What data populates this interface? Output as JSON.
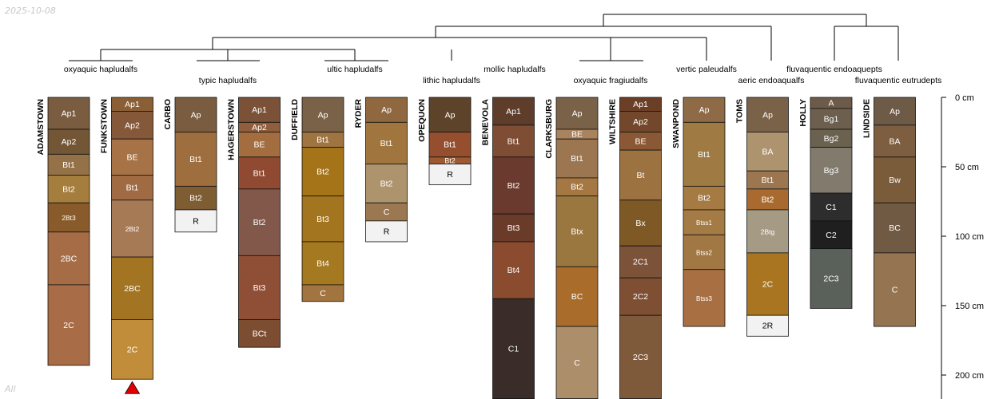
{
  "corner_date": "2025-10-08",
  "corner_group": "All",
  "chart_data": {
    "type": "soil-profile-sketch",
    "depth_unit": "cm",
    "depth_axis": {
      "ticks": [
        0,
        50,
        100,
        150,
        200
      ],
      "labels": [
        "0 cm",
        "50 cm",
        "100 cm",
        "150 cm",
        "200 cm"
      ],
      "range": [
        0,
        217
      ]
    },
    "profiles": [
      {
        "name": "ADAMSTOWN",
        "horizons": [
          {
            "label": "Ap1",
            "top": 0,
            "bottom": 23,
            "color": "#7a5d40"
          },
          {
            "label": "Ap2",
            "top": 23,
            "bottom": 41,
            "color": "#725636"
          },
          {
            "label": "Bt1",
            "top": 41,
            "bottom": 56,
            "color": "#947146"
          },
          {
            "label": "Bt2",
            "top": 56,
            "bottom": 76,
            "color": "#a57d3c"
          },
          {
            "label": "2Bt3",
            "top": 76,
            "bottom": 97,
            "color": "#8a5b2a"
          },
          {
            "label": "2BC",
            "top": 97,
            "bottom": 135,
            "color": "#a56c46"
          },
          {
            "label": "2C",
            "top": 135,
            "bottom": 193,
            "color": "#a86c46"
          }
        ]
      },
      {
        "name": "FUNKSTOWN",
        "horizons": [
          {
            "label": "Ap1",
            "top": 0,
            "bottom": 10,
            "color": "#8a5f35"
          },
          {
            "label": "Ap2",
            "top": 10,
            "bottom": 30,
            "color": "#86583a"
          },
          {
            "label": "BE",
            "top": 30,
            "bottom": 56,
            "color": "#a77346"
          },
          {
            "label": "Bt1",
            "top": 56,
            "bottom": 74,
            "color": "#a06b43"
          },
          {
            "label": "2Bt2",
            "top": 74,
            "bottom": 115,
            "color": "#a77a56"
          },
          {
            "label": "2BC",
            "top": 115,
            "bottom": 160,
            "color": "#a37421"
          },
          {
            "label": "2C",
            "top": 160,
            "bottom": 203,
            "color": "#c28d3a"
          }
        ]
      },
      {
        "name": "CARBO",
        "horizons": [
          {
            "label": "Ap",
            "top": 0,
            "bottom": 25,
            "color": "#7a5d40"
          },
          {
            "label": "Bt1",
            "top": 25,
            "bottom": 64,
            "color": "#9f6e3f"
          },
          {
            "label": "Bt2",
            "top": 64,
            "bottom": 81,
            "color": "#7e5d33"
          },
          {
            "label": "R",
            "top": 81,
            "bottom": 97,
            "color": "#f2f2f2"
          }
        ]
      },
      {
        "name": "HAGERSTOWN",
        "horizons": [
          {
            "label": "Ap1",
            "top": 0,
            "bottom": 18,
            "color": "#7b5238"
          },
          {
            "label": "Ap2",
            "top": 18,
            "bottom": 25,
            "color": "#8f5e3c"
          },
          {
            "label": "BE",
            "top": 25,
            "bottom": 43,
            "color": "#a36d40"
          },
          {
            "label": "Bt1",
            "top": 43,
            "bottom": 66,
            "color": "#8f4a31"
          },
          {
            "label": "Bt2",
            "top": 66,
            "bottom": 114,
            "color": "#82584b"
          },
          {
            "label": "Bt3",
            "top": 114,
            "bottom": 160,
            "color": "#8f4e36"
          },
          {
            "label": "BCt",
            "top": 160,
            "bottom": 180,
            "color": "#7c4d31"
          }
        ]
      },
      {
        "name": "DUFFIELD",
        "horizons": [
          {
            "label": "Ap",
            "top": 0,
            "bottom": 25,
            "color": "#7a6248"
          },
          {
            "label": "Bt1",
            "top": 25,
            "bottom": 36,
            "color": "#9f7440"
          },
          {
            "label": "Bt2",
            "top": 36,
            "bottom": 71,
            "color": "#a57419"
          },
          {
            "label": "Bt3",
            "top": 71,
            "bottom": 104,
            "color": "#a4751f"
          },
          {
            "label": "Bt4",
            "top": 104,
            "bottom": 135,
            "color": "#a57920"
          },
          {
            "label": "C",
            "top": 135,
            "bottom": 147,
            "color": "#a2743f"
          }
        ]
      },
      {
        "name": "RYDER",
        "horizons": [
          {
            "label": "Ap",
            "top": 0,
            "bottom": 18,
            "color": "#8f683f"
          },
          {
            "label": "Bt1",
            "top": 18,
            "bottom": 48,
            "color": "#a0763e"
          },
          {
            "label": "Bt2",
            "top": 48,
            "bottom": 76,
            "color": "#ae946d"
          },
          {
            "label": "C",
            "top": 76,
            "bottom": 89,
            "color": "#9b7752"
          },
          {
            "label": "R",
            "top": 89,
            "bottom": 104,
            "color": "#f2f2f2"
          }
        ]
      },
      {
        "name": "OPEQUON",
        "horizons": [
          {
            "label": "Ap",
            "top": 0,
            "bottom": 25,
            "color": "#5e432b"
          },
          {
            "label": "Bt1",
            "top": 25,
            "bottom": 43,
            "color": "#954f2f"
          },
          {
            "label": "Bt2",
            "top": 43,
            "bottom": 48,
            "color": "#9d5a30"
          },
          {
            "label": "R",
            "top": 48,
            "bottom": 63,
            "color": "#f2f2f2"
          }
        ]
      },
      {
        "name": "BENEVOLA",
        "horizons": [
          {
            "label": "Ap1",
            "top": 0,
            "bottom": 20,
            "color": "#5e3e2b"
          },
          {
            "label": "Bt1",
            "top": 20,
            "bottom": 43,
            "color": "#7e4d33"
          },
          {
            "label": "Bt2",
            "top": 43,
            "bottom": 84,
            "color": "#6b3a2e"
          },
          {
            "label": "Bt3",
            "top": 84,
            "bottom": 104,
            "color": "#6b3b2a"
          },
          {
            "label": "Bt4",
            "top": 104,
            "bottom": 145,
            "color": "#8a4b2e"
          },
          {
            "label": "C1",
            "top": 145,
            "bottom": 217,
            "color": "#392c29"
          }
        ]
      },
      {
        "name": "CLARKSBURG",
        "horizons": [
          {
            "label": "Ap",
            "top": 0,
            "bottom": 23,
            "color": "#7a6248"
          },
          {
            "label": "BE",
            "top": 23,
            "bottom": 30,
            "color": "#a9835d"
          },
          {
            "label": "Bt1",
            "top": 30,
            "bottom": 58,
            "color": "#9b7650"
          },
          {
            "label": "Bt2",
            "top": 58,
            "bottom": 71,
            "color": "#a47743"
          },
          {
            "label": "Btx",
            "top": 71,
            "bottom": 122,
            "color": "#9a773f"
          },
          {
            "label": "BC",
            "top": 122,
            "bottom": 165,
            "color": "#a96c2a"
          },
          {
            "label": "C",
            "top": 165,
            "bottom": 217,
            "color": "#ad8e6a"
          }
        ]
      },
      {
        "name": "WILTSHIRE",
        "horizons": [
          {
            "label": "Ap1",
            "top": 0,
            "bottom": 10,
            "color": "#6b3f26"
          },
          {
            "label": "Ap2",
            "top": 10,
            "bottom": 25,
            "color": "#73472c"
          },
          {
            "label": "BE",
            "top": 25,
            "bottom": 38,
            "color": "#8a5834"
          },
          {
            "label": "Bt",
            "top": 38,
            "bottom": 74,
            "color": "#9b7240"
          },
          {
            "label": "Bx",
            "top": 74,
            "bottom": 107,
            "color": "#7e5926"
          },
          {
            "label": "2C1",
            "top": 107,
            "bottom": 130,
            "color": "#7c5238"
          },
          {
            "label": "2C2",
            "top": 130,
            "bottom": 157,
            "color": "#7e4f33"
          },
          {
            "label": "2C3",
            "top": 157,
            "bottom": 217,
            "color": "#7f5a3a"
          }
        ]
      },
      {
        "name": "SWANPOND",
        "horizons": [
          {
            "label": "Ap",
            "top": 0,
            "bottom": 18,
            "color": "#8e6a47"
          },
          {
            "label": "Bt1",
            "top": 18,
            "bottom": 64,
            "color": "#9f7a42"
          },
          {
            "label": "Bt2",
            "top": 64,
            "bottom": 81,
            "color": "#a57b43"
          },
          {
            "label": "Btss1",
            "top": 81,
            "bottom": 99,
            "color": "#a47b44"
          },
          {
            "label": "Btss2",
            "top": 99,
            "bottom": 124,
            "color": "#a17844"
          },
          {
            "label": "Btss3",
            "top": 124,
            "bottom": 165,
            "color": "#a86f43"
          }
        ]
      },
      {
        "name": "TOMS",
        "horizons": [
          {
            "label": "Ap",
            "top": 0,
            "bottom": 25,
            "color": "#7a6248"
          },
          {
            "label": "BA",
            "top": 25,
            "bottom": 53,
            "color": "#ae936f"
          },
          {
            "label": "Bt1",
            "top": 53,
            "bottom": 66,
            "color": "#9c7651"
          },
          {
            "label": "Bt2",
            "top": 66,
            "bottom": 81,
            "color": "#a86a2e"
          },
          {
            "label": "2Btg",
            "top": 81,
            "bottom": 112,
            "color": "#a59b85"
          },
          {
            "label": "2C",
            "top": 112,
            "bottom": 157,
            "color": "#a97520"
          },
          {
            "label": "2R",
            "top": 157,
            "bottom": 172,
            "color": "#f2f2f2"
          }
        ]
      },
      {
        "name": "HOLLY",
        "horizons": [
          {
            "label": "A",
            "top": 0,
            "bottom": 8,
            "color": "#6e5a48"
          },
          {
            "label": "Bg1",
            "top": 8,
            "bottom": 23,
            "color": "#6d5f4e"
          },
          {
            "label": "Bg2",
            "top": 23,
            "bottom": 36,
            "color": "#6b614f"
          },
          {
            "label": "Bg3",
            "top": 36,
            "bottom": 69,
            "color": "#827a6d"
          },
          {
            "label": "C1",
            "top": 69,
            "bottom": 89,
            "color": "#2d2d2d"
          },
          {
            "label": "C2",
            "top": 89,
            "bottom": 109,
            "color": "#1f1f1f"
          },
          {
            "label": "2C3",
            "top": 109,
            "bottom": 152,
            "color": "#5a605a"
          }
        ]
      },
      {
        "name": "LINDSIDE",
        "horizons": [
          {
            "label": "Ap",
            "top": 0,
            "bottom": 20,
            "color": "#6d5a47"
          },
          {
            "label": "BA",
            "top": 20,
            "bottom": 43,
            "color": "#7e5e40"
          },
          {
            "label": "Bw",
            "top": 43,
            "bottom": 76,
            "color": "#7a5c3a"
          },
          {
            "label": "BC",
            "top": 76,
            "bottom": 112,
            "color": "#705a43"
          },
          {
            "label": "C",
            "top": 112,
            "bottom": 165,
            "color": "#957452"
          }
        ]
      }
    ],
    "truncation_marker_profile": "FUNKSTOWN",
    "taxonomy_labels": [
      "oxyaquic hapludalfs",
      "typic hapludalfs",
      "ultic hapludalfs",
      "lithic hapludalfs",
      "mollic hapludalfs",
      "oxyaquic fragiudalfs",
      "vertic paleudalfs",
      "aeric endoaqualfs",
      "fluvaquentic endoaquepts",
      "fluvaquentic eutrudepts"
    ]
  }
}
